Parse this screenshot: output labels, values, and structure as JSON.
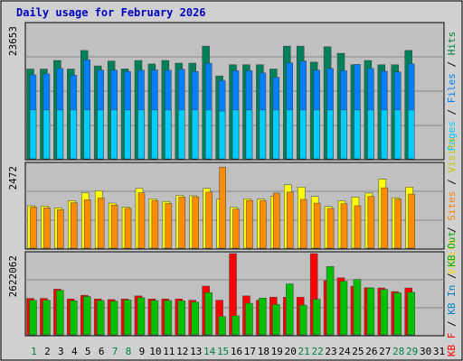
{
  "chart_data": {
    "type": "bar",
    "title": "Daily usage for February 2026",
    "categories": [
      "1",
      "2",
      "3",
      "4",
      "5",
      "6",
      "7",
      "8",
      "9",
      "10",
      "11",
      "12",
      "13",
      "14",
      "15",
      "16",
      "17",
      "18",
      "19",
      "20",
      "21",
      "22",
      "23",
      "24",
      "25",
      "26",
      "27",
      "28",
      "29",
      "30",
      "31"
    ],
    "weekend_days": [
      "1",
      "7",
      "8",
      "14",
      "15",
      "21",
      "22",
      "28",
      "29"
    ],
    "panels": [
      {
        "id": "hits-pages",
        "max_label": "23653",
        "ymax": 24800,
        "series": [
          {
            "name": "Hits",
            "values": [
              16400,
              16400,
              17950,
              16400,
              19760,
              16960,
              17850,
              16420,
              17950,
              17310,
              17950,
              17460,
              17460,
              20540,
              15160,
              17180,
              17180,
              17180,
              16400,
              20540,
              20540,
              17650,
              20430,
              19240,
              17180,
              17950,
              17180,
              17180,
              19760,
              0,
              0
            ]
          },
          {
            "name": "Files",
            "values": [
              15340,
              15500,
              16500,
              15260,
              18080,
              16200,
              16200,
              15950,
              16200,
              16230,
              16200,
              16360,
              15950,
              17440,
              14340,
              16100,
              16100,
              15690,
              14900,
              17520,
              17860,
              16200,
              16500,
              16100,
              17250,
              16500,
              16000,
              15870,
              17350,
              0,
              0
            ]
          },
          {
            "name": "Pages",
            "values": [
              9000,
              9000,
              9000,
              9000,
              9000,
              9000,
              9000,
              9000,
              9000,
              9000,
              9000,
              9000,
              9000,
              9000,
              8800,
              9000,
              9000,
              9000,
              9000,
              9000,
              9000,
              9000,
              9000,
              9000,
              9000,
              9000,
              9000,
              9000,
              9000,
              0,
              0
            ]
          }
        ]
      },
      {
        "id": "visits-sites",
        "max_label": "2472",
        "ymax": 2600,
        "series": [
          {
            "name": "Visits",
            "values": [
              1300,
              1290,
              1240,
              1450,
              1690,
              1750,
              1380,
              1260,
              1820,
              1510,
              1430,
              1610,
              1600,
              1820,
              1500,
              1260,
              1510,
              1500,
              1580,
              1930,
              1860,
              1580,
              1280,
              1450,
              1560,
              1680,
              2100,
              1540,
              1860,
              0,
              0
            ]
          },
          {
            "name": "Sites",
            "values": [
              1260,
              1240,
              1180,
              1390,
              1480,
              1530,
              1320,
              1220,
              1690,
              1460,
              1370,
              1560,
              1570,
              1710,
              2460,
              1200,
              1460,
              1450,
              1680,
              1710,
              1490,
              1380,
              1220,
              1360,
              1300,
              1580,
              1840,
              1500,
              1650,
              0,
              0
            ]
          }
        ]
      },
      {
        "id": "kbytes",
        "max_label": "2622062",
        "ymax": 2740000,
        "series": [
          {
            "name": "KB F",
            "values": [
              1220000,
              1220000,
              1520000,
              1200000,
              1320000,
              1200000,
              1180000,
              1200000,
              1300000,
              1200000,
              1200000,
              1200000,
              1160000,
              1620000,
              1160000,
              2740000,
              1300000,
              1160000,
              1260000,
              1260000,
              1260000,
              2740000,
              1800000,
              1890000,
              1620000,
              1570000,
              1560000,
              1440000,
              1560000,
              0,
              0
            ]
          },
          {
            "name": "KB In",
            "values": [
              0,
              0,
              0,
              0,
              0,
              0,
              0,
              0,
              0,
              0,
              0,
              0,
              0,
              0,
              0,
              0,
              0,
              0,
              0,
              0,
              0,
              0,
              0,
              0,
              0,
              0,
              0,
              0,
              0,
              0,
              0
            ]
          },
          {
            "name": "KB Out",
            "values": [
              1160000,
              1160000,
              1480000,
              1140000,
              1280000,
              1150000,
              1130000,
              1170000,
              1240000,
              1150000,
              1150000,
              1140000,
              1100000,
              1410000,
              630000,
              650000,
              1060000,
              1230000,
              1020000,
              1690000,
              1000000,
              1190000,
              2260000,
              1780000,
              1840000,
              1560000,
              1510000,
              1400000,
              1420000,
              0,
              0
            ]
          }
        ]
      }
    ],
    "legend_right": [
      [
        {
          "text": "Pages",
          "color": "#00c8ff"
        },
        {
          "text": " / ",
          "color": "#000000"
        },
        {
          "text": "Files",
          "color": "#0080ff"
        },
        {
          "text": " / ",
          "color": "#000000"
        },
        {
          "text": "Hits",
          "color": "#008040"
        }
      ],
      [
        {
          "text": "Visits",
          "color": "#ffd700"
        },
        {
          "text": " / ",
          "color": "#000000"
        },
        {
          "text": "Sites",
          "color": "#ff8000"
        },
        {
          "text": " / ",
          "color": "#000000"
        },
        {
          "text": "Visits",
          "color": "#c8c800"
        }
      ],
      [
        {
          "text": "KB F",
          "color": "#ff0000"
        },
        {
          "text": " / ",
          "color": "#000000"
        },
        {
          "text": "KB In",
          "color": "#0080c0"
        },
        {
          "text": " / ",
          "color": "#000000"
        },
        {
          "text": "KB Out",
          "color": "#00b000"
        }
      ]
    ],
    "legend_right_text": [
      "Pages / Files / Hits",
      "Visits / Sites / Visits",
      "KB F / KB In / KB Out"
    ],
    "grid": true,
    "colors": {
      "panel_bg": "#c0c0c0",
      "frame_bg": "#d0d0d0",
      "title": "#0000c0",
      "weekday_label": "#000000",
      "weekend_label": "#008040",
      "hits": "#00805a",
      "files": "#0080ff",
      "pages": "#00ccff",
      "visits": "#ffff00",
      "sites": "#ff8c00",
      "kbf": "#ff0000",
      "kbout": "#00c000"
    }
  }
}
